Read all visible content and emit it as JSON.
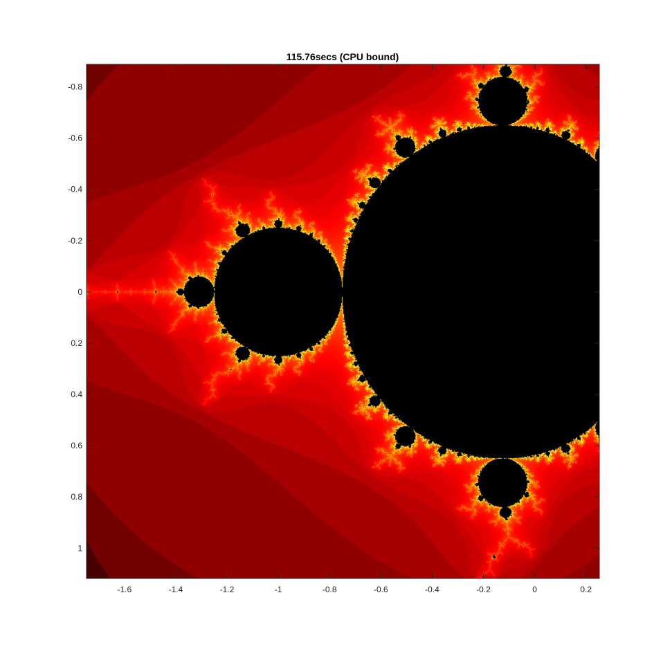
{
  "chart_data": {
    "type": "heatmap",
    "title": "115.76secs (CPU bound)",
    "xlabel": "",
    "ylabel": "",
    "xlim": [
      -1.748,
      0.252
    ],
    "ylim": [
      -0.888,
      1.118
    ],
    "y_reversed": true,
    "colormap": "hot",
    "max_iterations": 500,
    "x_ticks": [
      -1.6,
      -1.4,
      -1.2,
      -1,
      -0.8,
      -0.6,
      -0.4,
      -0.2,
      0,
      0.2
    ],
    "x_tick_labels": [
      "-1.6",
      "-1.4",
      "-1.2",
      "-1",
      "-0.8",
      "-0.6",
      "-0.4",
      "-0.2",
      "0",
      "0.2"
    ],
    "y_ticks": [
      -0.8,
      -0.6,
      -0.4,
      -0.2,
      0,
      0.2,
      0.4,
      0.6,
      0.8,
      1
    ],
    "y_tick_labels": [
      "-0.8",
      "-0.6",
      "-0.4",
      "-0.2",
      "0",
      "0.2",
      "0.4",
      "0.6",
      "0.8",
      "1"
    ],
    "grid": false,
    "legend": "none",
    "colors": {
      "axis": "#262626",
      "interior": "#000000"
    }
  }
}
